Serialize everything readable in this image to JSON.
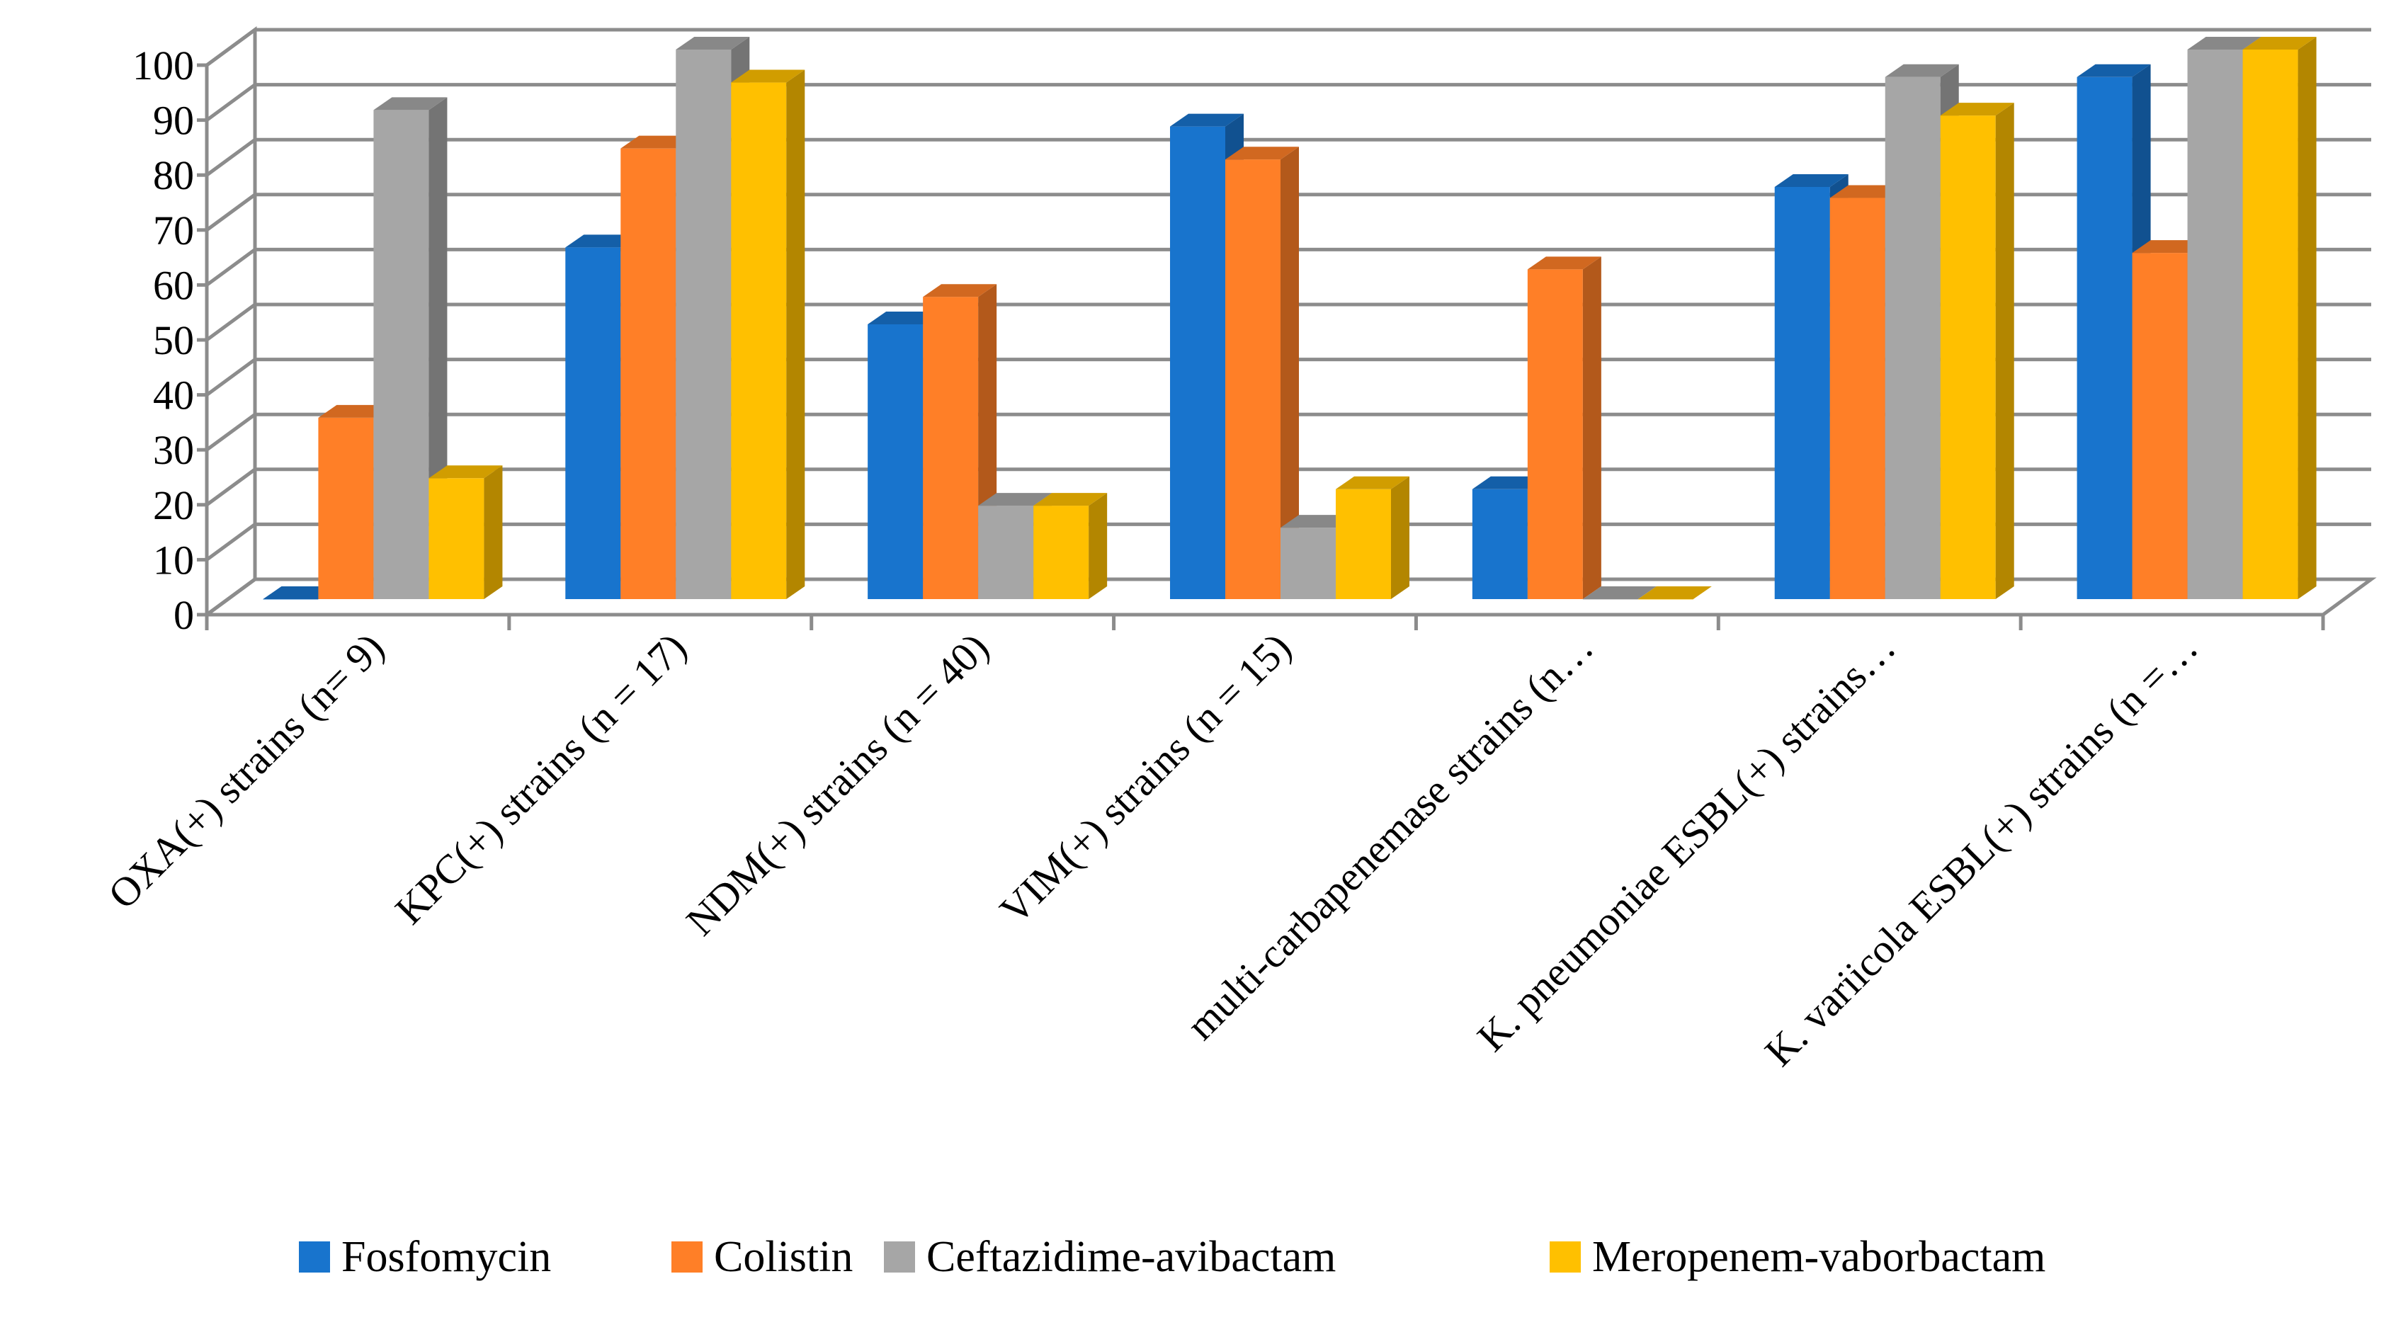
{
  "chart_data": {
    "type": "bar",
    "style": "3d-clustered-column",
    "categories": [
      "OXA(+) strains (n= 9)",
      "KPC(+) strains (n = 17)",
      "NDM(+) strains (n = 40)",
      "VIM(+) strains (n = 15)",
      "multi-carbapenemase strains (n…",
      "K. pneumoniae ESBL(+) strains…",
      "K. variicola ESBL(+) strains (n =…"
    ],
    "series": [
      {
        "name": "Fosfomycin",
        "color": "#1874CD",
        "values": [
          0,
          64,
          50,
          86,
          20,
          75,
          95
        ]
      },
      {
        "name": "Colistin",
        "color": "#FF7F27",
        "values": [
          33,
          82,
          55,
          80,
          60,
          73,
          63
        ]
      },
      {
        "name": "Ceftazidime-avibactam",
        "color": "#A6A6A6",
        "values": [
          89,
          100,
          17,
          13,
          0,
          95,
          100
        ]
      },
      {
        "name": "Meropenem-vaborbactam",
        "color": "#FFC000",
        "values": [
          22,
          94,
          17,
          20,
          0,
          88,
          100
        ]
      }
    ],
    "ylim": [
      0,
      100
    ],
    "yticks": [
      "0",
      "10",
      "20",
      "30",
      "40",
      "50",
      "60",
      "70",
      "80",
      "90",
      "100"
    ],
    "grid": true,
    "legend_position": "bottom",
    "title": "",
    "xlabel": "",
    "ylabel": ""
  }
}
